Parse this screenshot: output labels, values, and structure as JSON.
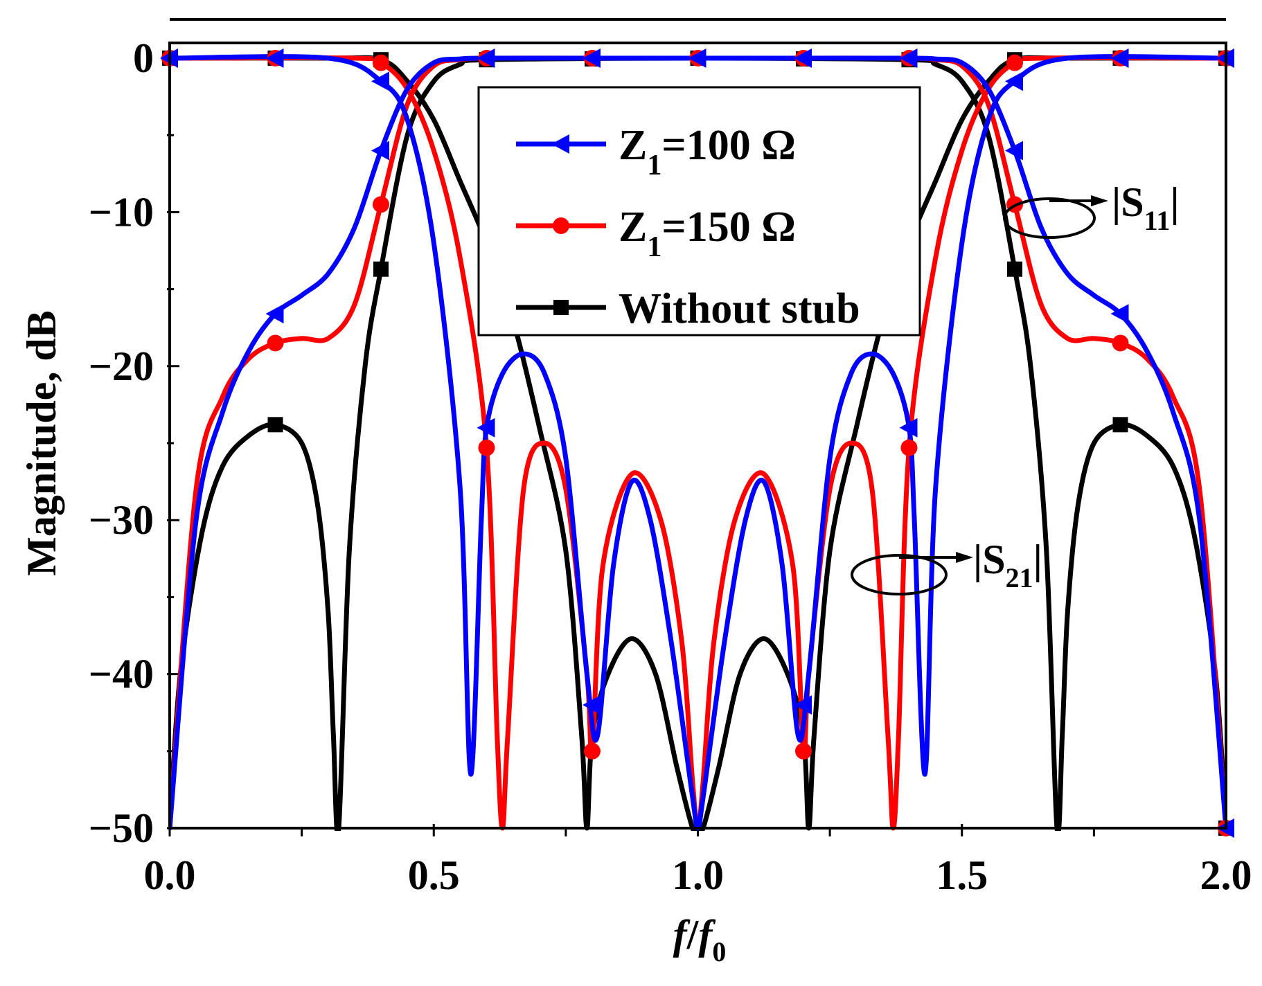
{
  "chart_data": {
    "type": "line",
    "xlabel": {
      "main": "f",
      "slash": "/",
      "sub_base": "f",
      "sub_index": "0"
    },
    "ylabel": "Magnitude, dB",
    "xlim": [
      0,
      2
    ],
    "ylim": [
      -50,
      0
    ],
    "x_ticks": [
      0,
      0.5,
      1,
      1.5,
      2
    ],
    "x_tick_labels": [
      "0.0",
      "0.5",
      "1.0",
      "1.5",
      "2.0"
    ],
    "y_ticks": [
      0,
      -10,
      -20,
      -30,
      -40,
      -50
    ],
    "y_tick_labels": [
      "0",
      "−10",
      "−20",
      "−30",
      "−40",
      "−50"
    ],
    "legend": {
      "placement": "top-center",
      "entries": [
        {
          "series": "Z100",
          "label_main": "Z",
          "label_sub": "1",
          "label_rest": "=100 Ω"
        },
        {
          "series": "Z150",
          "label_main": "Z",
          "label_sub": "1",
          "label_rest": "=150 Ω"
        },
        {
          "series": "NS",
          "label_main": "Without stub",
          "label_sub": "",
          "label_rest": ""
        }
      ]
    },
    "annotations": [
      {
        "id": "s11",
        "base": "|S",
        "sub": "11",
        "end": "|"
      },
      {
        "id": "s21",
        "base": "|S",
        "sub": "21",
        "end": "|"
      }
    ],
    "series": [
      {
        "id": "Z100",
        "name": "Z1=100 Ω",
        "color": "#0000ff",
        "marker": "triangle-left",
        "s21": {
          "x": [
            0,
            0.05,
            0.1,
            0.15,
            0.2,
            0.25,
            0.3,
            0.35,
            0.4,
            0.45,
            0.5,
            0.55,
            0.6,
            0.8,
            1.0,
            1.2,
            1.4,
            1.45,
            1.5,
            1.55,
            1.6,
            1.65,
            1.7,
            1.75,
            1.8,
            1.85,
            1.9,
            1.95,
            2.0
          ],
          "y": [
            -50,
            -30,
            -23,
            -19,
            -16.6,
            -15.4,
            -14,
            -11,
            -6,
            -2,
            -0.3,
            -0.05,
            0,
            0,
            0,
            0,
            0,
            -0.05,
            -0.3,
            -2,
            -6,
            -11,
            -14,
            -15.4,
            -16.6,
            -19,
            -23,
            -30,
            -50
          ]
        },
        "s11": {
          "x": [
            0,
            0.3,
            0.4,
            0.45,
            0.5,
            0.55,
            0.57,
            0.59,
            0.6,
            0.63,
            0.67,
            0.71,
            0.75,
            0.79,
            0.81,
            0.84,
            0.875,
            0.91,
            0.95,
            0.99,
            1.0,
            1.01,
            1.05,
            1.09,
            1.125,
            1.16,
            1.19,
            1.21,
            1.25,
            1.29,
            1.33,
            1.37,
            1.4,
            1.41,
            1.43,
            1.45,
            1.5,
            1.55,
            1.6,
            1.7,
            2.0
          ],
          "y": [
            0,
            0,
            -1.5,
            -4,
            -12,
            -28,
            -46.5,
            -30,
            -24,
            -20.5,
            -19.2,
            -20.5,
            -26,
            -40,
            -44,
            -33,
            -27.5,
            -30,
            -38,
            -48,
            -50,
            -48,
            -38,
            -30,
            -27.5,
            -33,
            -44,
            -40,
            -26,
            -20.5,
            -19.2,
            -20.5,
            -24,
            -30,
            -46.5,
            -28,
            -12,
            -4,
            -1.5,
            0,
            0
          ]
        },
        "markers_s21": [
          0.2,
          0.4,
          0.6,
          0.8,
          1.0,
          1.2,
          1.4,
          1.6,
          1.8,
          2.0
        ],
        "markers_s11": [
          0.0,
          0.2,
          0.4,
          0.6,
          0.8,
          1.2,
          1.4,
          1.6,
          1.8,
          2.0
        ]
      },
      {
        "id": "Z150",
        "name": "Z1=150 Ω",
        "color": "#ff0000",
        "marker": "circle",
        "s21": {
          "x": [
            0,
            0.05,
            0.1,
            0.15,
            0.2,
            0.25,
            0.3,
            0.35,
            0.4,
            0.45,
            0.5,
            0.55,
            0.6,
            0.8,
            1.0,
            1.2,
            1.4,
            1.45,
            1.5,
            1.55,
            1.6,
            1.65,
            1.7,
            1.75,
            1.8,
            1.85,
            1.9,
            1.95,
            2.0
          ],
          "y": [
            -50,
            -28,
            -22,
            -19.5,
            -18.5,
            -18.2,
            -18.2,
            -16,
            -9.5,
            -3,
            -0.5,
            -0.1,
            0,
            0,
            0,
            0,
            0,
            -0.1,
            -0.5,
            -3,
            -9.5,
            -16,
            -18.2,
            -18.2,
            -18.5,
            -19.5,
            -22,
            -28,
            -50
          ]
        },
        "s11": {
          "x": [
            0,
            0.35,
            0.4,
            0.45,
            0.5,
            0.55,
            0.6,
            0.62,
            0.63,
            0.64,
            0.67,
            0.71,
            0.75,
            0.79,
            0.8,
            0.82,
            0.875,
            0.93,
            0.97,
            0.99,
            1.0,
            1.01,
            1.03,
            1.07,
            1.125,
            1.18,
            1.2,
            1.21,
            1.25,
            1.29,
            1.33,
            1.36,
            1.37,
            1.38,
            1.4,
            1.45,
            1.5,
            1.55,
            1.6,
            1.65,
            2.0
          ],
          "y": [
            0,
            0,
            -0.3,
            -2,
            -6,
            -13,
            -25.3,
            -44,
            -50,
            -44,
            -28,
            -25,
            -28,
            -40,
            -45,
            -33,
            -27,
            -30,
            -38,
            -47,
            -50,
            -47,
            -38,
            -30,
            -27,
            -33,
            -45,
            -40,
            -28,
            -25,
            -28,
            -44,
            -50,
            -44,
            -25.3,
            -13,
            -6,
            -2,
            -0.3,
            0,
            0
          ]
        },
        "markers_s21": [
          0.2,
          0.4,
          0.6,
          0.8,
          1.0,
          1.2,
          1.4,
          1.6,
          1.8,
          2.0
        ],
        "markers_s11": [
          0.0,
          0.2,
          0.4,
          0.6,
          0.8,
          1.2,
          1.4,
          1.6,
          1.8,
          2.0
        ]
      },
      {
        "id": "NS",
        "name": "Without stub",
        "color": "#000000",
        "marker": "square",
        "s21": {
          "x": [
            0,
            0.02,
            0.06,
            0.1,
            0.15,
            0.2,
            0.25,
            0.28,
            0.3,
            0.31,
            0.32,
            0.34,
            0.37,
            0.4,
            0.45,
            0.5,
            0.55,
            0.6,
            1.0,
            1.4,
            1.45,
            1.5,
            1.55,
            1.6,
            1.63,
            1.66,
            1.68,
            1.69,
            1.7,
            1.72,
            1.75,
            1.8,
            1.85,
            1.9,
            1.94,
            1.98,
            2.0
          ],
          "y": [
            -50,
            -40,
            -31,
            -26.5,
            -24.5,
            -23.8,
            -25,
            -29,
            -36,
            -44,
            -50,
            -32,
            -20,
            -13.7,
            -5,
            -1.5,
            -0.4,
            -0.1,
            0,
            -0.1,
            -0.4,
            -1.5,
            -5,
            -13.7,
            -20,
            -32,
            -50,
            -44,
            -36,
            -29,
            -25,
            -23.8,
            -24.5,
            -26.5,
            -31,
            -40,
            -50
          ]
        },
        "s11": {
          "x": [
            0,
            0.3,
            0.4,
            0.45,
            0.5,
            0.55,
            0.6,
            0.65,
            0.7,
            0.75,
            0.78,
            0.79,
            0.8,
            0.83,
            0.875,
            0.92,
            0.96,
            0.99,
            1.0,
            1.01,
            1.04,
            1.08,
            1.125,
            1.17,
            1.2,
            1.21,
            1.22,
            1.25,
            1.3,
            1.35,
            1.4,
            1.45,
            1.5,
            1.55,
            1.6,
            1.7,
            2.0
          ],
          "y": [
            0,
            0,
            -0.1,
            -1.5,
            -4,
            -8,
            -12,
            -17,
            -24,
            -32,
            -44,
            -50,
            -44,
            -40,
            -37.7,
            -40,
            -46,
            -50,
            -50,
            -50,
            -46,
            -40,
            -37.7,
            -40,
            -44,
            -50,
            -44,
            -32,
            -24,
            -17,
            -12,
            -8,
            -4,
            -1.5,
            -0.1,
            0,
            0
          ]
        },
        "markers_s21": [
          0.2,
          0.4,
          0.6,
          0.8,
          1.0,
          1.2,
          1.4,
          1.6,
          1.8,
          2.0
        ],
        "markers_s11": [
          0.0,
          0.2,
          0.4,
          1.6,
          1.8,
          2.0
        ]
      }
    ]
  }
}
